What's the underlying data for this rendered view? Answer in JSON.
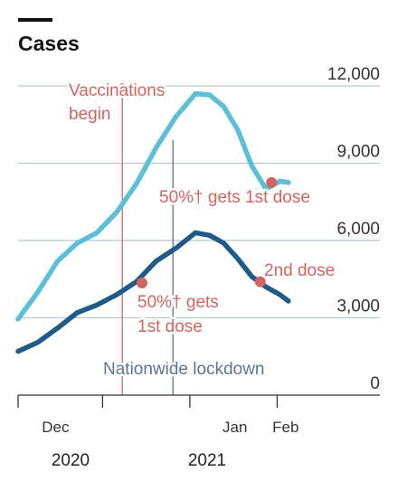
{
  "chart_data": {
    "type": "line",
    "title": "Cases",
    "y_ticks": [
      "12,000",
      "9,000",
      "6,000",
      "3,000",
      "0"
    ],
    "y_tick_values": [
      12000,
      9000,
      6000,
      3000,
      0
    ],
    "ylim": [
      0,
      12000
    ],
    "x_ticks": [
      "Dec",
      "Jan",
      "Feb"
    ],
    "x_years": [
      "2020",
      "2021"
    ],
    "series": [
      {
        "color": "#5bc0d6",
        "x": [
          "2020-11-01",
          "2020-11-08",
          "2020-11-15",
          "2020-11-22",
          "2020-11-29",
          "2020-12-06",
          "2020-12-13",
          "2020-12-20",
          "2020-12-27",
          "2021-01-03",
          "2021-01-08",
          "2021-01-13",
          "2021-01-18",
          "2021-01-23",
          "2021-01-28",
          "2021-02-02",
          "2021-02-05"
        ],
        "values": [
          2950,
          4000,
          5200,
          5900,
          6300,
          7100,
          8200,
          9600,
          10800,
          11700,
          11650,
          11200,
          10300,
          8900,
          8000,
          8300,
          8250
        ]
      },
      {
        "color": "#1f5b86",
        "x": [
          "2020-11-01",
          "2020-11-08",
          "2020-11-15",
          "2020-11-22",
          "2020-11-29",
          "2020-12-06",
          "2020-12-13",
          "2020-12-20",
          "2020-12-27",
          "2021-01-03",
          "2021-01-08",
          "2021-01-13",
          "2021-01-18",
          "2021-01-23",
          "2021-01-28",
          "2021-02-02",
          "2021-02-05"
        ],
        "values": [
          1700,
          2050,
          2600,
          3200,
          3500,
          3900,
          4400,
          5200,
          5700,
          6300,
          6200,
          5900,
          5300,
          4600,
          4200,
          3900,
          3650
        ]
      }
    ],
    "annotations": {
      "vaccinations": {
        "label_line1": "Vaccinations",
        "label_line2": "begin",
        "x": "2020-12-08"
      },
      "lockdown": {
        "label": "Nationwide lockdown",
        "x": "2020-12-26"
      },
      "cases_first_dose": {
        "label": "50%† gets 1st dose",
        "x": "2021-01-30",
        "value": 8250
      },
      "deaths_first_dose": {
        "label_line1": "50%† gets",
        "label_line2": "1st dose",
        "x": "2020-12-15",
        "value": 4350
      },
      "deaths_second_dose": {
        "label": "2nd dose",
        "x": "2021-01-26",
        "value": 4400
      }
    },
    "grid": true,
    "colors": {
      "cases": "#5bc0d6",
      "second_line": "#1f5b86",
      "annotation_red": "#d26461",
      "annotation_blue": "#5a7790",
      "grid": "#b7c6cf"
    }
  }
}
